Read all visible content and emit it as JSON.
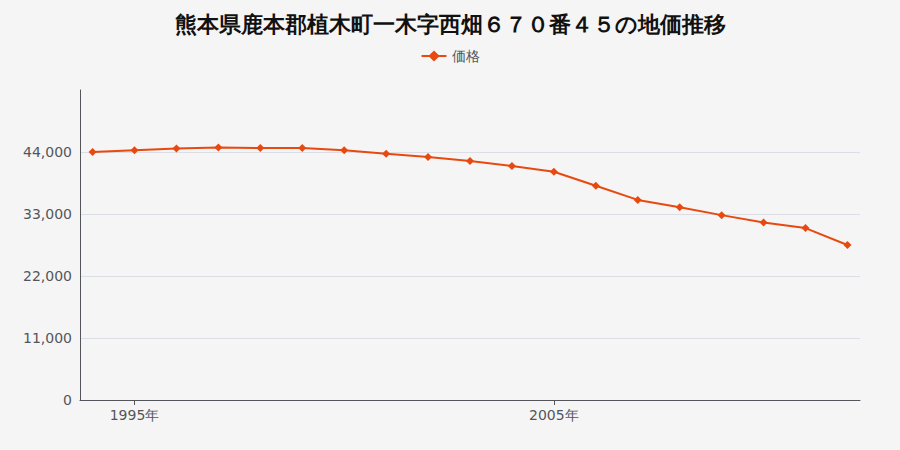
{
  "chart_data": {
    "type": "line",
    "title": "熊本県鹿本郡植木町一木字西畑６７０番４５の地価推移",
    "series": [
      {
        "name": "価格",
        "color": "#e8490f",
        "marker": "diamond",
        "x": [
          1994,
          1995,
          1996,
          1997,
          1998,
          1999,
          2000,
          2001,
          2002,
          2003,
          2004,
          2005,
          2006,
          2007,
          2008,
          2009,
          2010,
          2011,
          2012
        ],
        "values": [
          44000,
          44300,
          44600,
          44800,
          44700,
          44700,
          44300,
          43700,
          43100,
          42400,
          41500,
          40500,
          38000,
          35500,
          34200,
          32800,
          31500,
          30500,
          27500
        ]
      }
    ],
    "xlim": [
      1993.7,
      2012.3
    ],
    "xticks": [
      {
        "value": 1995,
        "label": "1995年"
      },
      {
        "value": 2005,
        "label": "2005年"
      }
    ],
    "ylim": [
      0,
      55000
    ],
    "yticks": [
      0,
      {
        "value": 11000,
        "label": "11,000"
      },
      {
        "value": 22000,
        "label": "22,000"
      },
      {
        "value": 33000,
        "label": "33,000"
      },
      {
        "value": 44000,
        "label": "44,000"
      }
    ],
    "grid": "y",
    "legend": "top"
  }
}
